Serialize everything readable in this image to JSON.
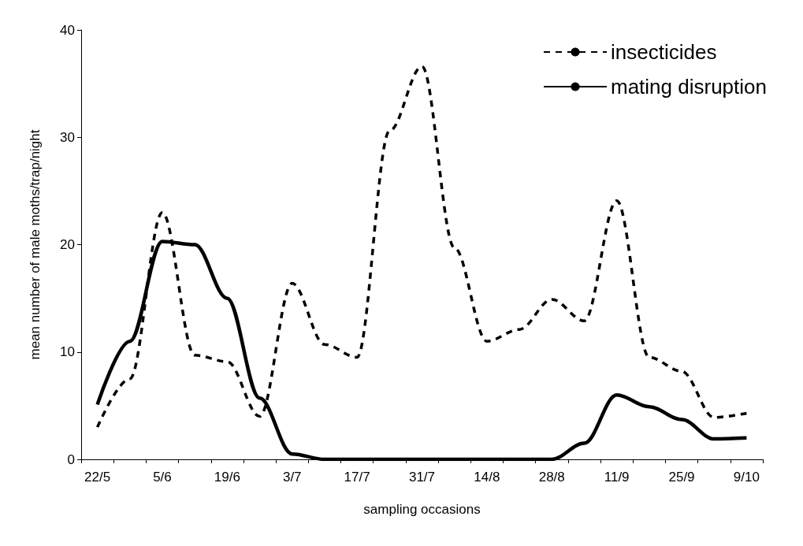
{
  "chart_data": {
    "type": "line",
    "xlabel": "sampling occasions",
    "ylabel": "mean number of male moths/trap/night",
    "categories": [
      "22/5",
      null,
      "5/6",
      null,
      "19/6",
      null,
      "3/7",
      null,
      "17/7",
      null,
      "31/7",
      null,
      "14/8",
      null,
      "28/8",
      null,
      "11/9",
      null,
      "25/9",
      null,
      "9/10"
    ],
    "series": [
      {
        "name": "insecticides",
        "color": "#000000",
        "line_style": "dashed",
        "values": [
          3,
          7.5,
          23,
          9.7,
          9.1,
          4,
          16.4,
          10.7,
          9.5,
          30.6,
          36.6,
          19.7,
          11,
          12.1,
          14.9,
          12.9,
          24.1,
          9.5,
          8.2,
          3.9,
          4.3
        ]
      },
      {
        "name": "mating disruption",
        "color": "#000000",
        "line_style": "solid",
        "values": [
          5.1,
          11,
          20.3,
          20,
          15,
          5.7,
          0.5,
          0,
          0,
          0,
          0,
          0,
          0,
          0,
          0,
          1.5,
          6,
          4.9,
          3.7,
          1.9,
          2
        ]
      }
    ],
    "ylim": [
      0,
      40
    ],
    "yticks": [
      0,
      10,
      20,
      30,
      40
    ],
    "grid": false,
    "legend": "top right",
    "marker": "none"
  }
}
